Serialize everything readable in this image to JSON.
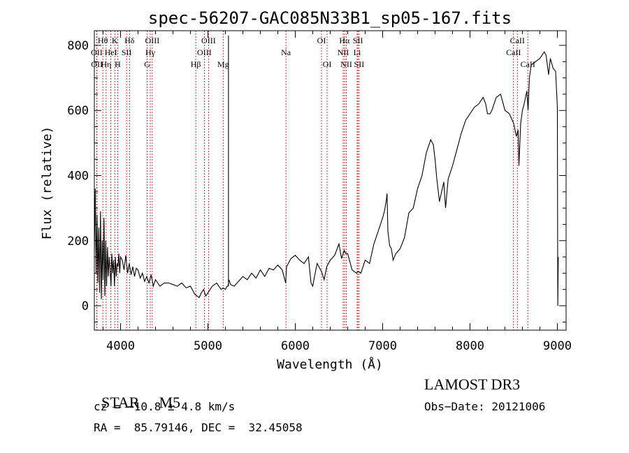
{
  "chart_data": {
    "type": "line",
    "title": "spec-56207-GAC085N33B1_sp05-167.fits",
    "xlabel": "Wavelength (Å)",
    "ylabel": "Flux (relative)",
    "xlim": [
      3700,
      9100
    ],
    "ylim": [
      -75,
      845
    ],
    "xticks": [
      4000,
      5000,
      6000,
      7000,
      8000,
      9000
    ],
    "yticks": [
      0,
      200,
      400,
      600,
      800
    ],
    "spectrum": {
      "x": [
        3700,
        3710,
        3720,
        3730,
        3740,
        3750,
        3760,
        3770,
        3780,
        3790,
        3800,
        3810,
        3820,
        3830,
        3840,
        3850,
        3860,
        3870,
        3880,
        3890,
        3900,
        3910,
        3920,
        3930,
        3940,
        3950,
        3960,
        3970,
        3980,
        3990,
        4000,
        4020,
        4040,
        4060,
        4080,
        4100,
        4120,
        4140,
        4160,
        4180,
        4200,
        4225,
        4250,
        4275,
        4300,
        4325,
        4350,
        4375,
        4400,
        4450,
        4500,
        4550,
        4600,
        4650,
        4700,
        4750,
        4800,
        4850,
        4900,
        4925,
        4950,
        4975,
        5000,
        5050,
        5100,
        5150,
        5175,
        5200,
        5220,
        5230,
        5240,
        5260,
        5300,
        5350,
        5400,
        5450,
        5500,
        5550,
        5600,
        5650,
        5700,
        5750,
        5800,
        5850,
        5880,
        5890,
        5900,
        5950,
        6000,
        6050,
        6100,
        6150,
        6180,
        6200,
        6220,
        6250,
        6300,
        6330,
        6360,
        6400,
        6450,
        6500,
        6530,
        6560,
        6580,
        6600,
        6650,
        6700,
        6720,
        6750,
        6800,
        6850,
        6900,
        6950,
        7000,
        7020,
        7040,
        7050,
        7060,
        7080,
        7100,
        7120,
        7150,
        7200,
        7250,
        7300,
        7350,
        7400,
        7450,
        7500,
        7550,
        7580,
        7600,
        7620,
        7650,
        7700,
        7720,
        7750,
        7800,
        7850,
        7900,
        7950,
        8000,
        8050,
        8100,
        8150,
        8180,
        8200,
        8230,
        8250,
        8300,
        8350,
        8400,
        8450,
        8500,
        8530,
        8550,
        8560,
        8580,
        8600,
        8620,
        8650,
        8665,
        8680,
        8700,
        8750,
        8800,
        8850,
        8870,
        8900,
        8920,
        8950,
        8980,
        9000,
        9005,
        9010
      ],
      "y": [
        170,
        360,
        100,
        280,
        70,
        240,
        40,
        290,
        20,
        200,
        80,
        270,
        30,
        200,
        60,
        180,
        90,
        150,
        110,
        60,
        160,
        100,
        140,
        60,
        150,
        90,
        130,
        120,
        160,
        100,
        150,
        140,
        110,
        155,
        100,
        130,
        95,
        120,
        90,
        115,
        110,
        85,
        100,
        75,
        90,
        70,
        95,
        60,
        80,
        60,
        70,
        70,
        65,
        60,
        70,
        55,
        60,
        35,
        25,
        40,
        50,
        30,
        40,
        60,
        70,
        50,
        55,
        50,
        60,
        60,
        80,
        65,
        60,
        75,
        90,
        80,
        100,
        85,
        110,
        90,
        115,
        110,
        125,
        110,
        80,
        70,
        120,
        145,
        155,
        140,
        130,
        150,
        70,
        60,
        90,
        130,
        105,
        80,
        120,
        140,
        155,
        190,
        145,
        170,
        160,
        160,
        110,
        100,
        105,
        100,
        140,
        130,
        190,
        230,
        270,
        290,
        320,
        345,
        230,
        185,
        175,
        140,
        160,
        175,
        210,
        285,
        300,
        360,
        400,
        470,
        510,
        495,
        450,
        390,
        320,
        380,
        300,
        390,
        430,
        480,
        530,
        570,
        590,
        610,
        620,
        640,
        620,
        590,
        590,
        600,
        640,
        650,
        600,
        590,
        560,
        520,
        540,
        430,
        560,
        600,
        620,
        660,
        600,
        700,
        740,
        750,
        760,
        780,
        770,
        710,
        760,
        730,
        720,
        610,
        0,
        150
      ],
      "units": "relative flux"
    },
    "lines": [
      {
        "label": "Hθ",
        "wave": 3797,
        "row": 1
      },
      {
        "label": "OII",
        "wave": 3727,
        "row": 2
      },
      {
        "label": "OII",
        "wave": 3729,
        "row": 3
      },
      {
        "label": "K",
        "wave": 3934,
        "row": 1
      },
      {
        "label": "HeI",
        "wave": 3889,
        "row": 2
      },
      {
        "label": "Hη",
        "wave": 3835,
        "row": 3
      },
      {
        "label": "H",
        "wave": 3968,
        "row": 3
      },
      {
        "label": "Hδ",
        "wave": 4102,
        "row": 1
      },
      {
        "label": "SII",
        "wave": 4069,
        "row": 2
      },
      {
        "label": "OIII",
        "wave": 4363,
        "row": 1
      },
      {
        "label": "Hγ",
        "wave": 4340,
        "row": 2
      },
      {
        "label": "G",
        "wave": 4305,
        "row": 3
      },
      {
        "label": "OIII",
        "wave": 5007,
        "row": 1
      },
      {
        "label": "OIII",
        "wave": 4959,
        "row": 2
      },
      {
        "label": "Hβ",
        "wave": 4861,
        "row": 3
      },
      {
        "label": "Mg",
        "wave": 5175,
        "row": 3
      },
      {
        "label": "Na",
        "wave": 5893,
        "row": 2
      },
      {
        "label": "OI",
        "wave": 6300,
        "row": 1
      },
      {
        "label": "OI",
        "wave": 6364,
        "row": 3
      },
      {
        "label": "Hα",
        "wave": 6563,
        "row": 1
      },
      {
        "label": "SII",
        "wave": 6717,
        "row": 1
      },
      {
        "label": "NII",
        "wave": 6548,
        "row": 2
      },
      {
        "label": "Li",
        "wave": 6708,
        "row": 2
      },
      {
        "label": "NII",
        "wave": 6584,
        "row": 3
      },
      {
        "label": "SII",
        "wave": 6731,
        "row": 3
      },
      {
        "label": "CaII",
        "wave": 8542,
        "row": 1
      },
      {
        "label": "CaII",
        "wave": 8498,
        "row": 2
      },
      {
        "label": "CaII",
        "wave": 8662,
        "row": 3
      }
    ]
  },
  "info": {
    "object_type": "STAR",
    "subclass": "M5",
    "survey": "LAMOST DR3",
    "redshift": "cz = −10.8 ± 4.8 km/s",
    "obs_date": "Obs−Date: 20121006",
    "coords": "RA =  85.79146, DEC =  32.45058"
  },
  "colors": {
    "spectrum": "#000000",
    "line_markers": "#cc0000",
    "axes": "#000000",
    "background": "#ffffff"
  }
}
